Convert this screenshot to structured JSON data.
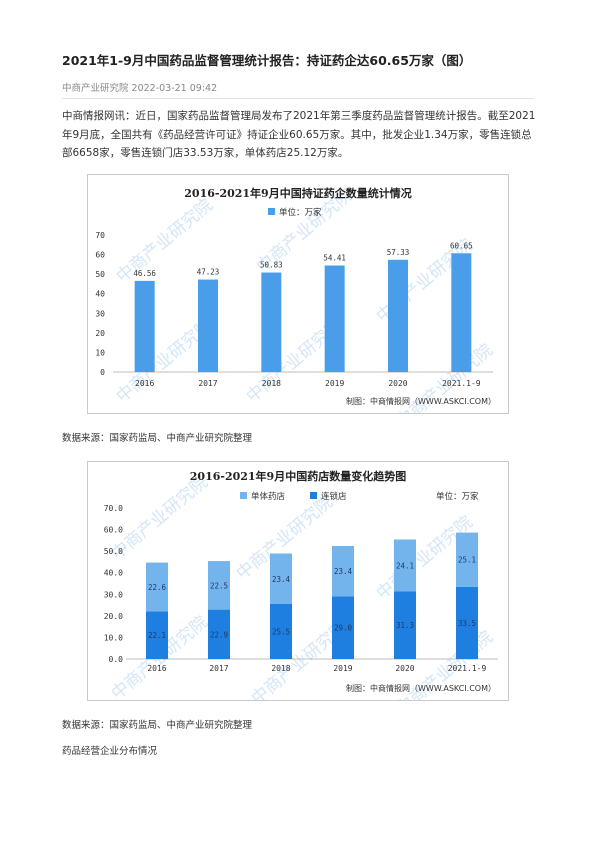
{
  "article": {
    "title": "2021年1-9月中国药品监督管理统计报告：持证药企达60.65万家（图）",
    "meta": "中商产业研究院 2022-03-21 09:42",
    "paragraph": "中商情报网讯：近日，国家药品监督管理局发布了2021年第三季度药品监督管理统计报告。截至2021年9月底，全国共有《药品经营许可证》持证企业60.65万家。其中，批发企业1.34万家，零售连锁总部6658家，零售连锁门店33.53万家，单体药店25.12万家。",
    "source1": "数据来源：国家药监局、中商产业研究院整理",
    "source2": "数据来源：国家药监局、中商产业研究院整理",
    "section_heading": "药品经营企业分布情况"
  },
  "chart_data": [
    {
      "type": "bar",
      "title": "2016-2021年9月中国持证药企数量统计情况",
      "legend": [
        "单位：万家"
      ],
      "categories": [
        "2016",
        "2017",
        "2018",
        "2019",
        "2020",
        "2021.1-9"
      ],
      "values": [
        46.56,
        47.23,
        50.83,
        54.41,
        57.33,
        60.65
      ],
      "value_labels": [
        "46.56",
        "47.23",
        "50.83",
        "54.41",
        "57.33",
        "60.65"
      ],
      "y_ticks": [
        "0",
        "10",
        "20",
        "30",
        "40",
        "50",
        "60",
        "70"
      ],
      "ylim": [
        0,
        70
      ],
      "grid": false,
      "credit": "制图：中商情报网（WWW.ASKCI.COM）",
      "watermark": "中商产业研究院",
      "colors": {
        "bar": "#4a9de8"
      }
    },
    {
      "type": "bar",
      "stacked": true,
      "title": "2016-2021年9月中国药店数量变化趋势图",
      "unit": "单位：万家",
      "categories": [
        "2016",
        "2017",
        "2018",
        "2019",
        "2020",
        "2021.1-9"
      ],
      "series": [
        {
          "name": "连锁店",
          "values": [
            22.1,
            22.9,
            25.5,
            29.0,
            31.3,
            33.5
          ],
          "labels": [
            "22.1",
            "22.9",
            "25.5",
            "29.0",
            "31.3",
            "33.5"
          ]
        },
        {
          "name": "单体药店",
          "values": [
            22.6,
            22.5,
            23.4,
            23.4,
            24.1,
            25.1
          ],
          "labels": [
            "22.6",
            "22.5",
            "23.4",
            "23.4",
            "24.1",
            "25.1"
          ]
        }
      ],
      "legend_order": [
        "单体药店",
        "连锁店"
      ],
      "y_ticks": [
        "0.0",
        "10.0",
        "20.0",
        "30.0",
        "40.0",
        "50.0",
        "60.0",
        "70.0"
      ],
      "ylim": [
        0,
        70
      ],
      "grid": false,
      "credit": "制图：中商情报网（WWW.ASKCI.COM）",
      "watermark": "中商产业研究院",
      "colors": {
        "连锁店": "#1f7fe0",
        "单体药店": "#74b4ec"
      }
    }
  ]
}
